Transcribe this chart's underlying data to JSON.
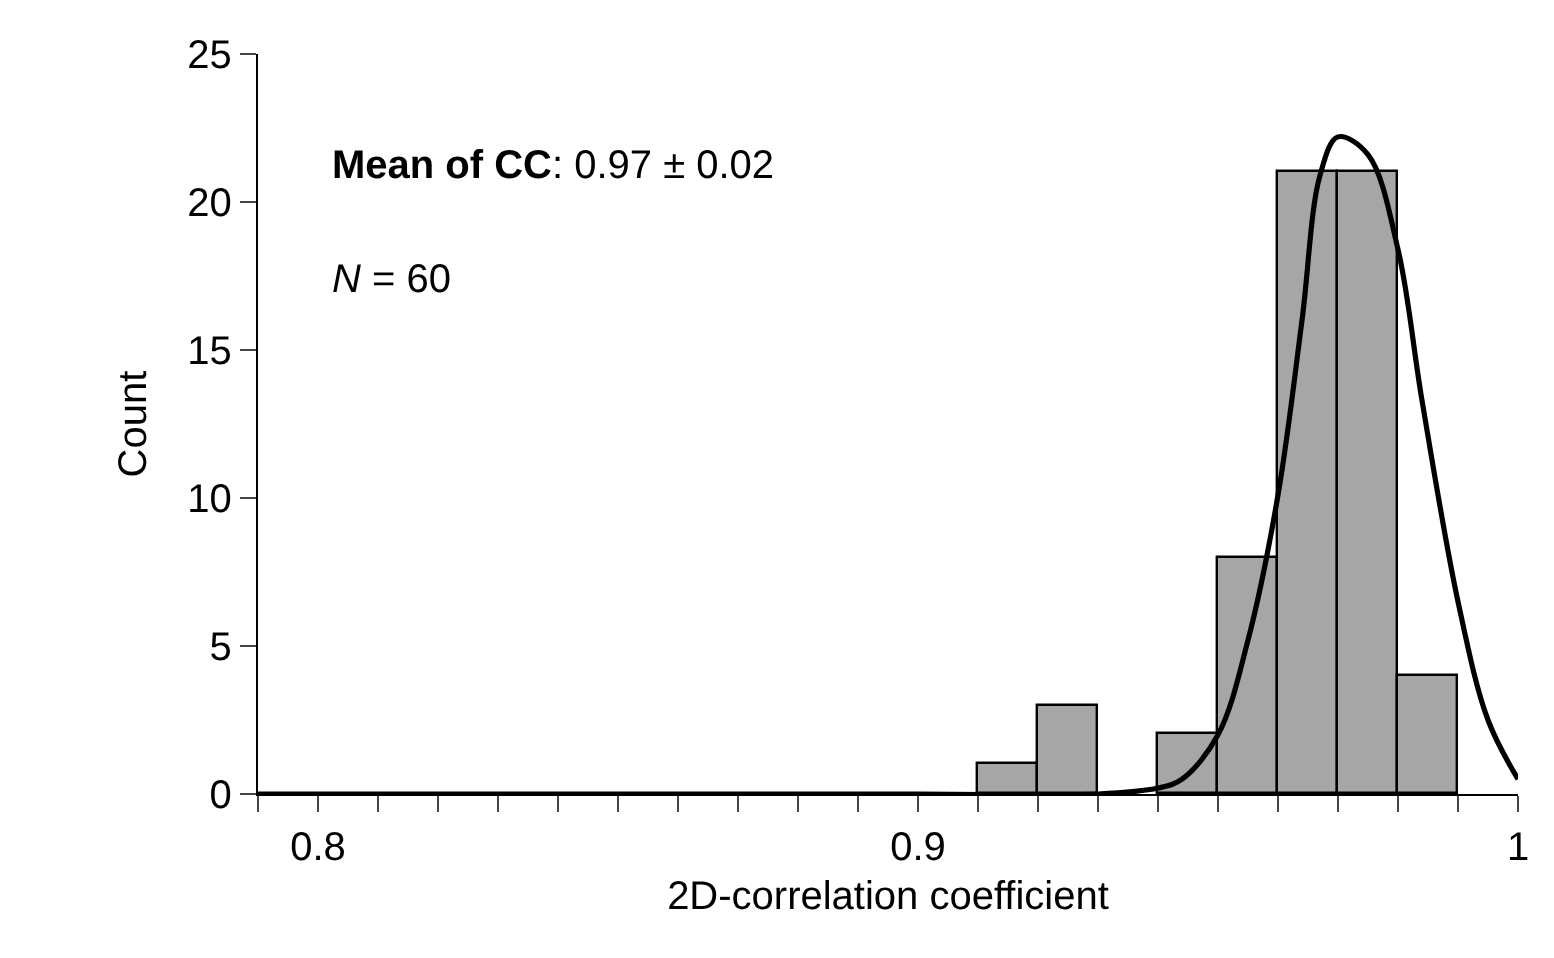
{
  "chart_data": {
    "type": "histogram",
    "xlabel": "2D-correlation coefficient",
    "ylabel": "Count",
    "bins": [
      0.91,
      0.92,
      0.93,
      0.94,
      0.95,
      0.96,
      0.97,
      0.98,
      0.99
    ],
    "values": [
      1,
      3,
      0,
      2,
      8,
      21,
      21,
      4
    ],
    "color": "#a6a6a6",
    "series": [
      {
        "type": "line",
        "color": "#000000",
        "x": [
          0.79,
          0.9,
          0.93,
          0.94,
          0.944,
          0.95,
          0.955,
          0.96,
          0.964,
          0.967,
          0.97,
          0.975,
          0.98,
          0.984,
          0.99,
          0.995,
          1.0
        ],
        "values": [
          0,
          0,
          0,
          0.2,
          0.5,
          2,
          5.2,
          10.1,
          16,
          20.9,
          22.2,
          21.6,
          18.4,
          13.3,
          6.5,
          2.5,
          0.5
        ]
      }
    ],
    "xlim": [
      0.79,
      1.0
    ],
    "xticks": [
      {
        "value": 0.79,
        "label": null
      },
      0.8,
      {
        "value": 0.81,
        "label": null
      },
      {
        "value": 0.82,
        "label": null
      },
      {
        "value": 0.83,
        "label": null
      },
      {
        "value": 0.84,
        "label": null
      },
      {
        "value": 0.85,
        "label": null
      },
      {
        "value": 0.86,
        "label": null
      },
      {
        "value": 0.87,
        "label": null
      },
      {
        "value": 0.88,
        "label": null
      },
      {
        "value": 0.89,
        "label": null
      },
      0.9,
      {
        "value": 0.91,
        "label": null
      },
      {
        "value": 0.92,
        "label": null
      },
      {
        "value": 0.93,
        "label": null
      },
      {
        "value": 0.94,
        "label": null
      },
      {
        "value": 0.95,
        "label": null
      },
      {
        "value": 0.96,
        "label": null
      },
      {
        "value": 0.97,
        "label": null
      },
      {
        "value": 0.98,
        "label": null
      },
      {
        "value": 0.99,
        "label": null
      },
      1
    ],
    "ylim": [
      0,
      25
    ],
    "yticks": [
      0,
      5,
      10,
      15,
      20,
      25
    ],
    "annotations": [
      "Mean of CC: 0.97 ± 0.02",
      "N = 60"
    ]
  }
}
